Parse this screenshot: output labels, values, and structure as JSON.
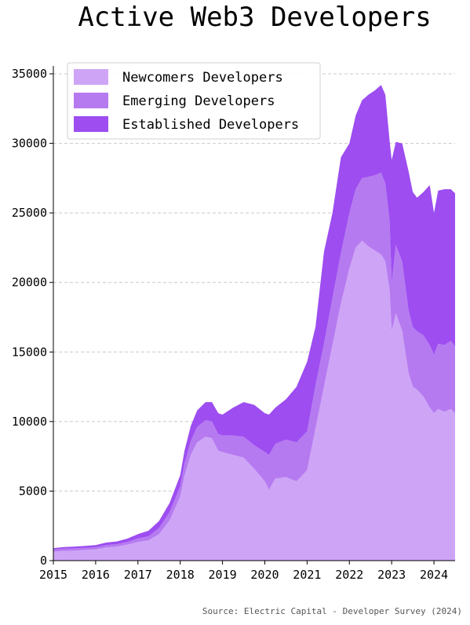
{
  "chart_data": {
    "type": "area",
    "stacked": true,
    "title": "Active Web3 Developers",
    "xlabel": "",
    "ylabel": "",
    "x_ticks": [
      "2015",
      "2016",
      "2017",
      "2018",
      "2019",
      "2020",
      "2021",
      "2022",
      "2023",
      "2024"
    ],
    "y_ticks": [
      0,
      5000,
      10000,
      15000,
      20000,
      25000,
      30000,
      35000
    ],
    "xlim": [
      2015.0,
      2024.5
    ],
    "ylim": [
      0,
      35000
    ],
    "grid": "horizontal dashed",
    "legend_position": "top-left",
    "x": [
      2015.0,
      2015.25,
      2015.5,
      2015.75,
      2016.0,
      2016.25,
      2016.5,
      2016.75,
      2017.0,
      2017.25,
      2017.5,
      2017.75,
      2018.0,
      2018.1,
      2018.25,
      2018.4,
      2018.6,
      2018.75,
      2018.9,
      2019.0,
      2019.25,
      2019.5,
      2019.75,
      2020.0,
      2020.1,
      2020.25,
      2020.5,
      2020.75,
      2021.0,
      2021.2,
      2021.4,
      2021.6,
      2021.8,
      2022.0,
      2022.15,
      2022.3,
      2022.45,
      2022.6,
      2022.75,
      2022.85,
      2022.95,
      2023.0,
      2023.1,
      2023.25,
      2023.4,
      2023.5,
      2023.6,
      2023.75,
      2023.9,
      2024.0,
      2024.1,
      2024.25,
      2024.4,
      2024.5
    ],
    "series": [
      {
        "name": "Newcomers Developers",
        "color": "#cea5f6",
        "values": [
          650,
          700,
          720,
          760,
          800,
          950,
          1000,
          1150,
          1350,
          1450,
          1900,
          2900,
          4600,
          6100,
          7600,
          8500,
          8900,
          8800,
          7900,
          7800,
          7600,
          7400,
          6600,
          5700,
          5100,
          5900,
          6000,
          5700,
          6500,
          9500,
          12500,
          15500,
          18500,
          21000,
          22500,
          23000,
          22600,
          22300,
          22000,
          21500,
          19500,
          16500,
          17800,
          16500,
          13500,
          12500,
          12300,
          11800,
          11000,
          10600,
          10900,
          10700,
          10900,
          10600
        ]
      },
      {
        "name": "Emerging Developers",
        "color": "#b67af0",
        "values": [
          150,
          150,
          160,
          160,
          160,
          170,
          180,
          200,
          250,
          300,
          450,
          600,
          750,
          900,
          1000,
          1100,
          1200,
          1200,
          1200,
          1200,
          1400,
          1500,
          1700,
          2100,
          2500,
          2500,
          2700,
          2800,
          2800,
          3100,
          3100,
          3400,
          3600,
          4000,
          4200,
          4500,
          5000,
          5400,
          5900,
          5600,
          5000,
          3500,
          4900,
          5000,
          4500,
          4300,
          4200,
          4400,
          4500,
          4200,
          4700,
          4800,
          4900,
          4800
        ]
      },
      {
        "name": "Established Developers",
        "color": "#9d4df0",
        "values": [
          100,
          120,
          130,
          140,
          150,
          180,
          200,
          230,
          300,
          400,
          500,
          650,
          800,
          900,
          1100,
          1200,
          1300,
          1400,
          1500,
          1500,
          2000,
          2500,
          2900,
          2800,
          2900,
          2600,
          2900,
          4000,
          5000,
          4200,
          6600,
          6100,
          6900,
          5000,
          5300,
          5600,
          5900,
          6100,
          6300,
          6400,
          5700,
          8800,
          7400,
          8500,
          10000,
          9700,
          9600,
          10300,
          11500,
          10200,
          11000,
          11200,
          10900,
          11000
        ]
      }
    ],
    "source": "Source: Electric Capital - Developer Survey (2024)"
  }
}
